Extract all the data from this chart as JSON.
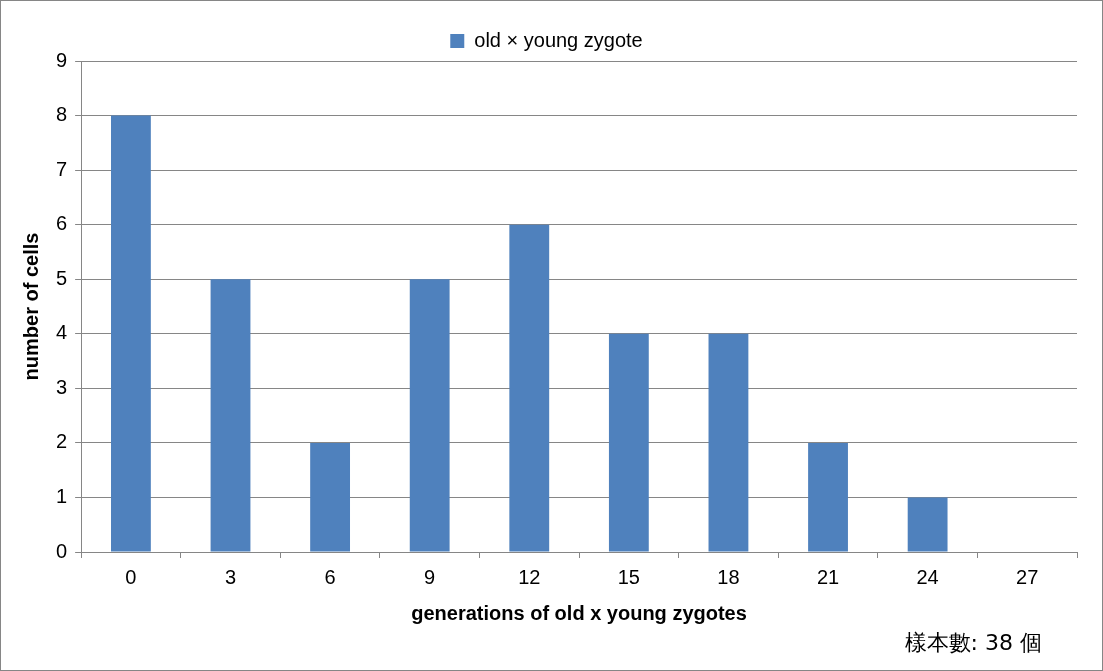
{
  "chart_data": {
    "type": "bar",
    "categories": [
      "0",
      "3",
      "6",
      "9",
      "12",
      "15",
      "18",
      "21",
      "24",
      "27"
    ],
    "series": [
      {
        "name": "old × young zygote",
        "color": "#4f81bd",
        "values": [
          8,
          5,
          2,
          5,
          6,
          4,
          4,
          2,
          1,
          0
        ]
      }
    ],
    "xlabel": "generations of old x young zygotes",
    "ylabel": "number of cells",
    "ylim": [
      0,
      9
    ],
    "yticks": [
      0,
      1,
      2,
      3,
      4,
      5,
      6,
      7,
      8,
      9
    ],
    "grid": "y",
    "legend": "top",
    "annotations": [
      "樣本數: 38 個"
    ]
  }
}
